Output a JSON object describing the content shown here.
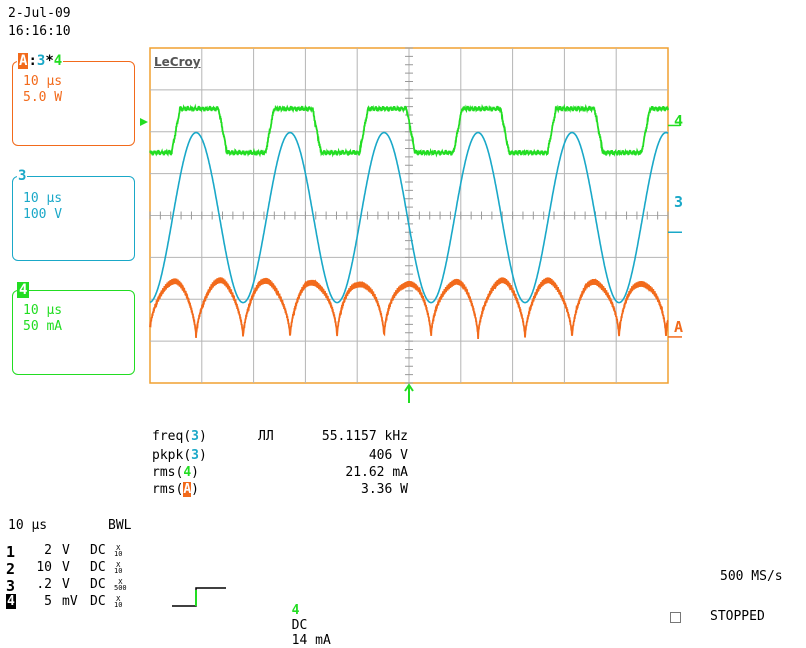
{
  "header": {
    "date": "2-Jul-09",
    "time": "16:16:10"
  },
  "brand": "LeCroy",
  "colors": {
    "ch3": "#1aa8c8",
    "ch4": "#22dd22",
    "chA": "#f26a1b",
    "grid": "#b5b5b5",
    "frame": "#f0a030"
  },
  "trace_boxes": [
    {
      "id": "A",
      "label": "A:3*4",
      "time_div": "10 µs",
      "vert_div": "5.0 W",
      "color": "#f26a1b"
    },
    {
      "id": "3",
      "label": "3",
      "time_div": "10 µs",
      "vert_div": "100 V",
      "color": "#1aa8c8"
    },
    {
      "id": "4",
      "label": "4",
      "time_div": "10 µs",
      "vert_div": "50 mA",
      "color": "#22dd22"
    }
  ],
  "measurements": [
    {
      "name": "freq",
      "channel": "3",
      "symbol": "ЛЛ",
      "value": "55.1157 kHz",
      "color": "#1aa8c8"
    },
    {
      "name": "pkpk",
      "channel": "3",
      "symbol": "",
      "value": "406 V",
      "color": "#1aa8c8"
    },
    {
      "name": "rms",
      "channel": "4",
      "symbol": "",
      "value": "21.62 mA",
      "color": "#22dd22"
    },
    {
      "name": "rms",
      "channel": "A",
      "symbol": "",
      "value": "3.36 W",
      "color": "#f26a1b"
    }
  ],
  "timebase": {
    "time_div": "10 µs",
    "bwl": "BWL",
    "sample_rate": "500 MS/s",
    "status": "STOPPED"
  },
  "channels": [
    {
      "num": "1",
      "value": "2",
      "unit": "V",
      "coupling": "DC",
      "probe": "X 10"
    },
    {
      "num": "2",
      "value": "10",
      "unit": "V",
      "coupling": "DC",
      "probe": "X 10"
    },
    {
      "num": "3",
      "value": ".2",
      "unit": "V",
      "coupling": "DC",
      "probe": "X 500"
    },
    {
      "num": "4",
      "value": "5",
      "unit": "mV",
      "coupling": "DC",
      "probe": "X 10"
    }
  ],
  "trigger": {
    "channel": "4",
    "coupling": "DC",
    "level": "14 mA",
    "color": "#22dd22"
  },
  "markers": {
    "ch4": "4",
    "ch3": "3",
    "chA": "A"
  },
  "chart_data": {
    "type": "line",
    "x_unit": "µs",
    "xlim": [
      0,
      100
    ],
    "time_div_us": 10,
    "frequency_khz": 55.1157,
    "grid": true,
    "series": [
      {
        "name": "3",
        "kind": "sinusoid",
        "peak_to_peak": 406,
        "unit": "V",
        "volts_per_div": 100,
        "color": "#1aa8c8",
        "first_peak_us": 8.9
      },
      {
        "name": "4",
        "kind": "square",
        "rms": 21.62,
        "unit": "mA",
        "amps_per_div": 50,
        "color": "#22dd22",
        "first_high_us": 5.8
      },
      {
        "name": "A",
        "kind": "rectified",
        "rms": 3.36,
        "unit": "W",
        "watts_per_div": 5.0,
        "color": "#f26a1b"
      }
    ]
  }
}
